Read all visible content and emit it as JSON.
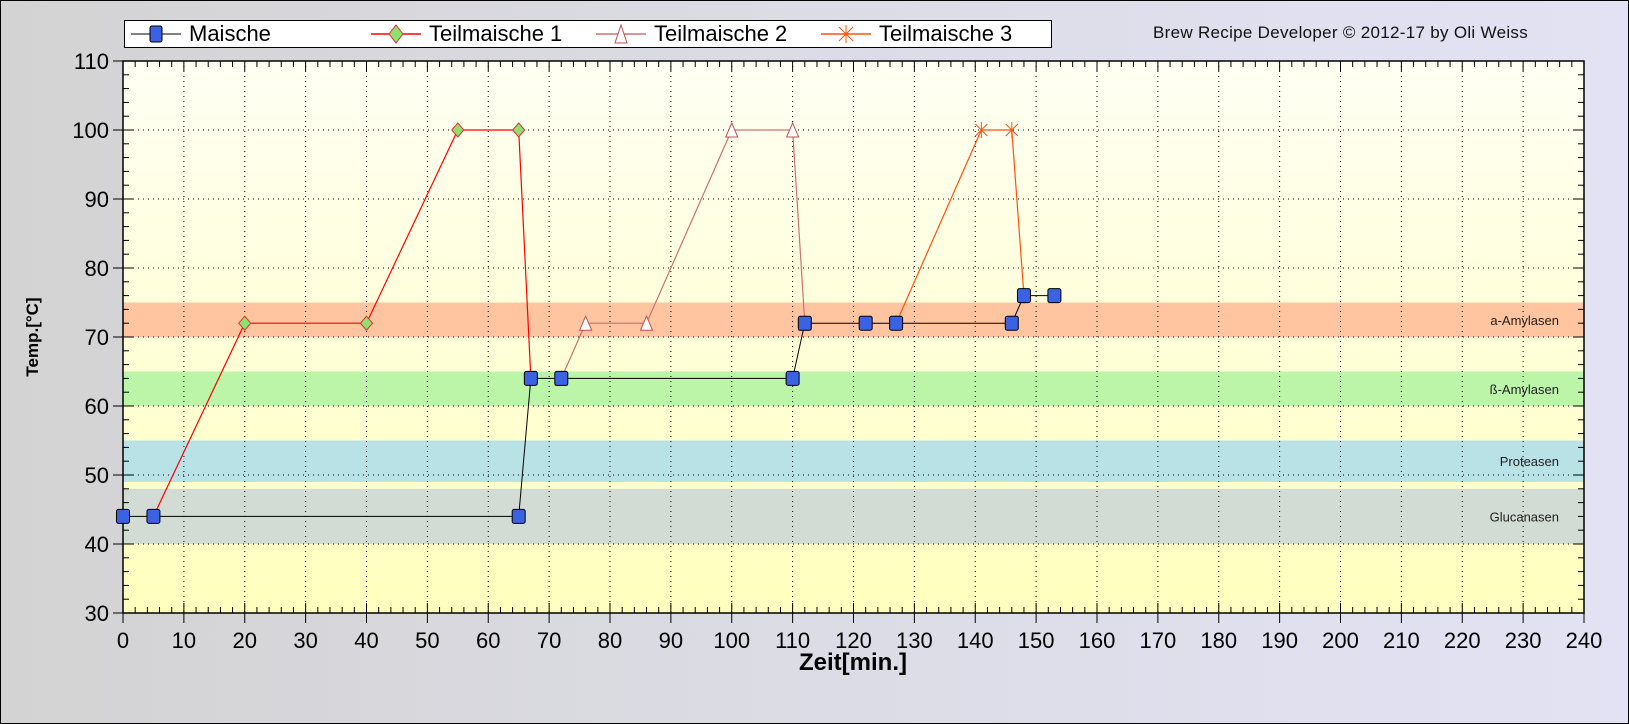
{
  "credit": "Brew Recipe Developer © 2012-17 by Oli Weiss",
  "colors": {
    "maische": "#3b62e0",
    "teil1_line": "#ff0000",
    "teil1_marker": "#90e070",
    "teil2_line": "#d07070",
    "teil3_line": "#ff5010"
  },
  "chart_data": {
    "type": "line",
    "xlabel": "Zeit[min.]",
    "ylabel": "Temp.[°C]",
    "xlim": [
      0,
      240
    ],
    "ylim": [
      30,
      110
    ],
    "xticks": [
      "0",
      "10",
      "20",
      "30",
      "40",
      "50",
      "60",
      "70",
      "80",
      "90",
      "100",
      "110",
      "120",
      "130",
      "140",
      "150",
      "160",
      "170",
      "180",
      "190",
      "200",
      "210",
      "220",
      "230",
      "240"
    ],
    "yticks": [
      "30",
      "40",
      "50",
      "60",
      "70",
      "80",
      "90",
      "100",
      "110"
    ],
    "grid": true,
    "legend_position": "top",
    "series": [
      {
        "name": "Maische",
        "marker": "square",
        "points": [
          [
            0,
            44
          ],
          [
            5,
            44
          ],
          [
            65,
            44
          ],
          [
            67,
            64
          ],
          [
            72,
            64
          ],
          [
            110,
            64
          ],
          [
            112,
            72
          ],
          [
            122,
            72
          ],
          [
            127,
            72
          ],
          [
            146,
            72
          ],
          [
            148,
            76
          ],
          [
            153,
            76
          ]
        ]
      },
      {
        "name": "Teilmaische 1",
        "marker": "diamond",
        "points": [
          [
            5,
            44
          ],
          [
            20,
            72
          ],
          [
            40,
            72
          ],
          [
            55,
            100
          ],
          [
            65,
            100
          ],
          [
            67,
            64
          ]
        ]
      },
      {
        "name": "Teilmaische 2",
        "marker": "triangle",
        "points": [
          [
            72,
            64
          ],
          [
            76,
            72
          ],
          [
            86,
            72
          ],
          [
            100,
            100
          ],
          [
            110,
            100
          ],
          [
            112,
            72
          ]
        ]
      },
      {
        "name": "Teilmaische 3",
        "marker": "asterisk",
        "points": [
          [
            127,
            72
          ],
          [
            141,
            100
          ],
          [
            146,
            100
          ],
          [
            148,
            76
          ]
        ]
      }
    ],
    "bands": [
      {
        "label": "a-Amylasen",
        "from": 70,
        "to": 75,
        "color": "#ffc4a0"
      },
      {
        "label": "ß-Amylasen",
        "from": 60,
        "to": 65,
        "color": "#bcf4a8"
      },
      {
        "label": "Proteasen",
        "from": 49,
        "to": 55,
        "color": "#b8e2e6"
      },
      {
        "label": "Glucanasen",
        "from": 40,
        "to": 48,
        "color": "#d2dcd4"
      }
    ]
  }
}
